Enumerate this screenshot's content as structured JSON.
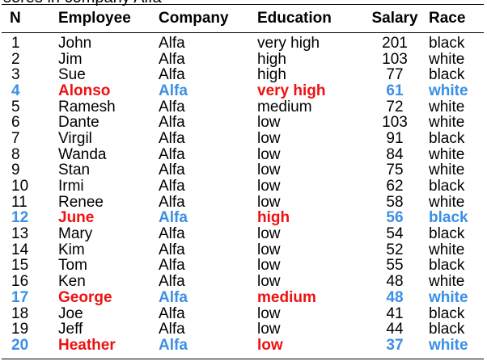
{
  "caption_fragment": "sores in company Alfa",
  "columns": [
    "N",
    "Employee",
    "Company",
    "Education",
    "Salary",
    "Race"
  ],
  "colors": {
    "text": "#000000",
    "highlight_red": "#ee1111",
    "highlight_blue": "#3b8fe6"
  },
  "rows": [
    {
      "n": "1",
      "employee": "John",
      "company": "Alfa",
      "education": "very high",
      "salary": "201",
      "race": "black",
      "highlight": false
    },
    {
      "n": "2",
      "employee": "Jim",
      "company": "Alfa",
      "education": "high",
      "salary": "103",
      "race": "white",
      "highlight": false
    },
    {
      "n": "3",
      "employee": "Sue",
      "company": "Alfa",
      "education": "high",
      "salary": "77",
      "race": "black",
      "highlight": false
    },
    {
      "n": "4",
      "employee": "Alonso",
      "company": "Alfa",
      "education": "very high",
      "salary": "61",
      "race": "white",
      "highlight": true
    },
    {
      "n": "5",
      "employee": "Ramesh",
      "company": "Alfa",
      "education": "medium",
      "salary": "72",
      "race": "white",
      "highlight": false
    },
    {
      "n": "6",
      "employee": "Dante",
      "company": "Alfa",
      "education": "low",
      "salary": "103",
      "race": "white",
      "highlight": false
    },
    {
      "n": "7",
      "employee": "Virgil",
      "company": "Alfa",
      "education": "low",
      "salary": "91",
      "race": "black",
      "highlight": false
    },
    {
      "n": "8",
      "employee": "Wanda",
      "company": "Alfa",
      "education": "low",
      "salary": "84",
      "race": "white",
      "highlight": false
    },
    {
      "n": "9",
      "employee": "Stan",
      "company": "Alfa",
      "education": "low",
      "salary": "75",
      "race": "white",
      "highlight": false
    },
    {
      "n": "10",
      "employee": "Irmi",
      "company": "Alfa",
      "education": "low",
      "salary": "62",
      "race": "black",
      "highlight": false
    },
    {
      "n": "11",
      "employee": "Renee",
      "company": "Alfa",
      "education": "low",
      "salary": "58",
      "race": "white",
      "highlight": false
    },
    {
      "n": "12",
      "employee": "June",
      "company": "Alfa",
      "education": "high",
      "salary": "56",
      "race": "black",
      "highlight": true
    },
    {
      "n": "13",
      "employee": "Mary",
      "company": "Alfa",
      "education": "low",
      "salary": "54",
      "race": "black",
      "highlight": false
    },
    {
      "n": "14",
      "employee": "Kim",
      "company": "Alfa",
      "education": "low",
      "salary": "52",
      "race": "white",
      "highlight": false
    },
    {
      "n": "15",
      "employee": "Tom",
      "company": "Alfa",
      "education": "low",
      "salary": "55",
      "race": "black",
      "highlight": false
    },
    {
      "n": "16",
      "employee": "Ken",
      "company": "Alfa",
      "education": "low",
      "salary": "48",
      "race": "white",
      "highlight": false
    },
    {
      "n": "17",
      "employee": "George",
      "company": "Alfa",
      "education": "medium",
      "salary": "48",
      "race": "white",
      "highlight": true
    },
    {
      "n": "18",
      "employee": "Joe",
      "company": "Alfa",
      "education": "low",
      "salary": "41",
      "race": "black",
      "highlight": false
    },
    {
      "n": "19",
      "employee": "Jeff",
      "company": "Alfa",
      "education": "low",
      "salary": "44",
      "race": "black",
      "highlight": false
    },
    {
      "n": "20",
      "employee": "Heather",
      "company": "Alfa",
      "education": "low",
      "salary": "37",
      "race": "white",
      "highlight": true
    }
  ]
}
